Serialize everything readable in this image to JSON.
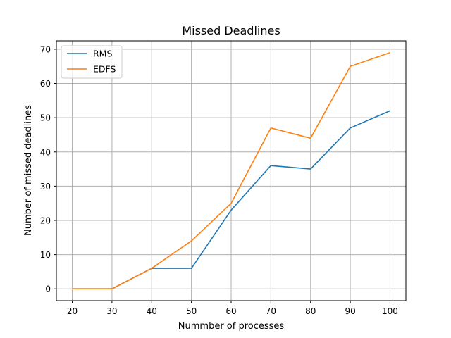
{
  "chart_data": {
    "type": "line",
    "title": "Missed Deadlines",
    "xlabel": "Nummber of processes",
    "ylabel": "Number of missed deadlines",
    "x": [
      20,
      30,
      40,
      50,
      60,
      70,
      80,
      90,
      100
    ],
    "xticks": [
      20,
      30,
      40,
      50,
      60,
      70,
      80,
      90,
      100
    ],
    "yticks": [
      0,
      10,
      20,
      30,
      40,
      50,
      60,
      70
    ],
    "xlim": [
      16,
      104
    ],
    "ylim": [
      -3.45,
      72.45
    ],
    "grid": true,
    "legend_position": "top-left",
    "series": [
      {
        "name": "RMS",
        "color": "#1f77b4",
        "values": [
          0,
          0,
          6,
          6,
          23,
          36,
          35,
          47,
          52
        ]
      },
      {
        "name": "EDFS",
        "color": "#ff7f0e",
        "values": [
          0,
          0,
          6,
          14,
          25,
          47,
          44,
          65,
          69
        ]
      }
    ]
  }
}
